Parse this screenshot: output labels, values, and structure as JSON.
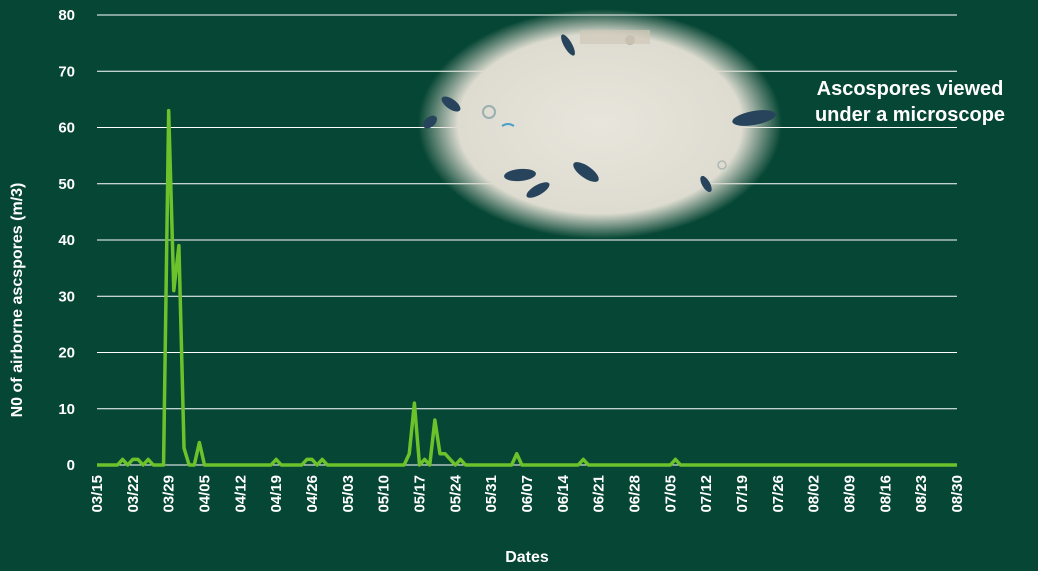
{
  "chart_data": {
    "type": "line",
    "xlabel": "Dates",
    "ylabel": "N0 of airborne ascspores (m/3)",
    "ylim": [
      0,
      80
    ],
    "yticks": [
      0,
      10,
      20,
      30,
      40,
      50,
      60,
      70,
      80
    ],
    "grid": "horizontal",
    "x_tick_labels": [
      "03/15",
      "03/22",
      "03/29",
      "04/05",
      "04/12",
      "04/19",
      "04/26",
      "05/03",
      "05/10",
      "05/17",
      "05/24",
      "05/31",
      "06/07",
      "06/14",
      "06/21",
      "06/28",
      "07/05",
      "07/12",
      "07/19",
      "07/26",
      "08/02",
      "08/09",
      "08/16",
      "08/23",
      "08/30"
    ],
    "annotation": [
      "Ascospores viewed",
      "under a microscope"
    ],
    "colors": {
      "line": "#6cc22b",
      "background": "#064634",
      "grid": "#ffffff",
      "text": "#ffffff"
    },
    "series": [
      {
        "x": [
          "03/15",
          "03/16",
          "03/17",
          "03/18",
          "03/19",
          "03/20",
          "03/21",
          "03/22",
          "03/23",
          "03/24",
          "03/25",
          "03/26",
          "03/27",
          "03/28",
          "03/29",
          "03/30",
          "03/31",
          "04/01",
          "04/02",
          "04/03",
          "04/04",
          "04/05",
          "04/06",
          "04/07",
          "04/08",
          "04/14",
          "04/15",
          "04/16",
          "04/17",
          "04/18",
          "04/19",
          "04/20",
          "04/21",
          "04/22",
          "04/23",
          "04/24",
          "04/25",
          "04/26",
          "04/27",
          "04/28",
          "04/29",
          "04/30",
          "05/01",
          "05/10",
          "05/11",
          "05/12",
          "05/13",
          "05/14",
          "05/15",
          "05/16",
          "05/17",
          "05/18",
          "05/19",
          "05/20",
          "05/21",
          "05/22",
          "05/23",
          "05/24",
          "05/25",
          "05/26",
          "06/02",
          "06/03",
          "06/04",
          "06/05",
          "06/06",
          "06/16",
          "06/17",
          "06/18",
          "06/19",
          "07/04",
          "07/05",
          "07/06",
          "07/07",
          "08/30"
        ],
        "values": [
          0,
          0,
          0,
          0,
          0,
          1,
          0,
          1,
          1,
          0,
          1,
          0,
          0,
          0,
          63,
          31,
          39,
          3,
          0,
          0,
          4,
          0,
          0,
          0,
          0,
          0,
          0,
          0,
          0,
          0,
          1,
          0,
          0,
          0,
          0,
          0,
          1,
          1,
          0,
          1,
          0,
          0,
          0,
          0,
          0,
          0,
          0,
          0,
          2,
          11,
          0,
          1,
          0,
          8,
          2,
          2,
          1,
          0,
          1,
          0,
          0,
          0,
          0,
          2,
          0,
          0,
          0,
          1,
          0,
          0,
          0,
          1,
          0,
          0
        ]
      }
    ]
  }
}
